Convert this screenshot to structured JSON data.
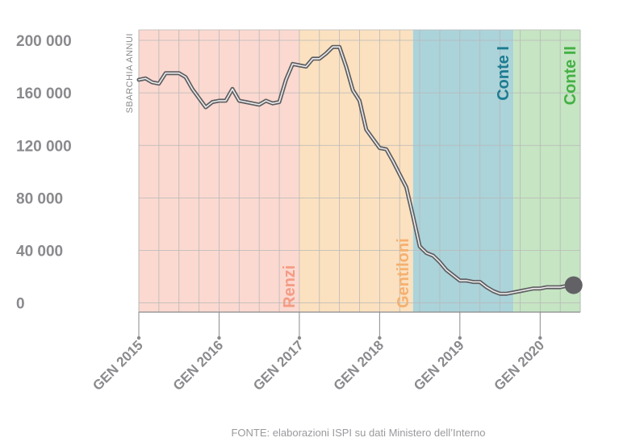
{
  "chart_data": {
    "type": "line",
    "ylabel": "SBARCHIA ANNUI",
    "y_ticks": [
      {
        "value": 0,
        "label": "0"
      },
      {
        "value": 40000,
        "label": "40 000"
      },
      {
        "value": 80000,
        "label": "80 000"
      },
      {
        "value": 120000,
        "label": "120 000"
      },
      {
        "value": 160000,
        "label": "160 000"
      },
      {
        "value": 200000,
        "label": "200 000"
      }
    ],
    "ylim": [
      -7000,
      208000
    ],
    "xlim": [
      "2015-01",
      "2020-07"
    ],
    "x_ticks": [
      {
        "value": "2015-01",
        "label": "GEN 2015"
      },
      {
        "value": "2016-01",
        "label": "GEN 2016"
      },
      {
        "value": "2017-01",
        "label": "GEN 2017"
      },
      {
        "value": "2018-01",
        "label": "GEN 2018"
      },
      {
        "value": "2019-01",
        "label": "GEN 2019"
      },
      {
        "value": "2020-01",
        "label": "GEN 2020"
      }
    ],
    "grid": true,
    "periods": [
      {
        "name": "Renzi",
        "start": "2015-01",
        "end": "2017-01",
        "color": "#fbd9d0",
        "text_color": "#f39c84",
        "label_pos": "bottom"
      },
      {
        "name": "Gentiloni",
        "start": "2017-01",
        "end": "2018-06",
        "color": "#fbe1c0",
        "text_color": "#f5b070",
        "label_pos": "bottom"
      },
      {
        "name": "Conte I",
        "start": "2018-06",
        "end": "2019-09",
        "color": "#abd3da",
        "text_color": "#1d7c91",
        "label_pos": "top"
      },
      {
        "name": "Conte II",
        "start": "2019-09",
        "end": "2020-07",
        "color": "#c6e5c3",
        "text_color": "#45b045",
        "label_pos": "top"
      }
    ],
    "series": [
      {
        "x": [
          "2015-01",
          "2015-02",
          "2015-03",
          "2015-04",
          "2015-05",
          "2015-06",
          "2015-07",
          "2015-08",
          "2015-09",
          "2015-10",
          "2015-11",
          "2015-12",
          "2016-01",
          "2016-02",
          "2016-03",
          "2016-04",
          "2016-05",
          "2016-06",
          "2016-07",
          "2016-08",
          "2016-09",
          "2016-10",
          "2016-11",
          "2016-12",
          "2017-01",
          "2017-02",
          "2017-03",
          "2017-04",
          "2017-05",
          "2017-06",
          "2017-07",
          "2017-08",
          "2017-09",
          "2017-10",
          "2017-11",
          "2017-12",
          "2018-01",
          "2018-02",
          "2018-03",
          "2018-04",
          "2018-05",
          "2018-06",
          "2018-07",
          "2018-08",
          "2018-09",
          "2018-10",
          "2018-11",
          "2018-12",
          "2019-01",
          "2019-02",
          "2019-03",
          "2019-04",
          "2019-05",
          "2019-06",
          "2019-07",
          "2019-08",
          "2019-09",
          "2019-10",
          "2019-11",
          "2019-12",
          "2020-01",
          "2020-02",
          "2020-03",
          "2020-04",
          "2020-05",
          "2020-06"
        ],
        "y": [
          170000,
          171000,
          168000,
          167000,
          175000,
          175000,
          175000,
          172000,
          163000,
          156000,
          149000,
          153000,
          154000,
          154000,
          163000,
          154000,
          153000,
          152000,
          151000,
          154000,
          152000,
          153000,
          170000,
          182000,
          181000,
          180000,
          186000,
          186000,
          190000,
          195000,
          195000,
          180000,
          162000,
          154000,
          132000,
          125000,
          118000,
          117000,
          108000,
          98000,
          88000,
          66000,
          43000,
          38000,
          36000,
          31000,
          25000,
          21000,
          17000,
          17000,
          16000,
          16000,
          12000,
          9000,
          7000,
          7000,
          8000,
          9000,
          10000,
          11000,
          11000,
          12000,
          12000,
          12000,
          13000,
          13500
        ]
      }
    ]
  },
  "source": "FONTE: elaborazioni ISPI su dati Ministero dell’Interno"
}
